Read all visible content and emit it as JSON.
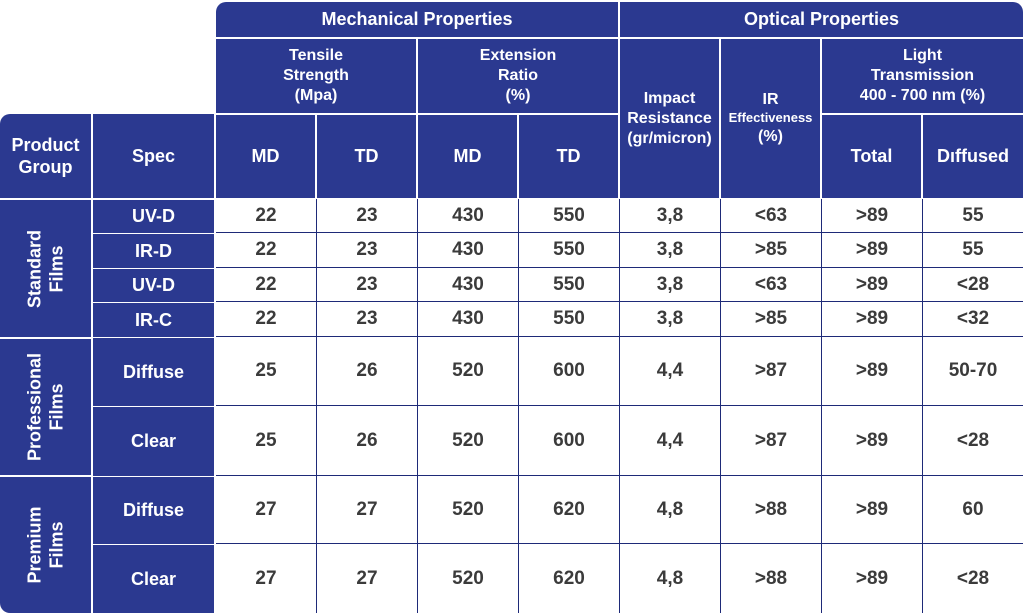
{
  "header": {
    "mechanical": "Mechanical Properties",
    "optical": "Optical Properties",
    "tensile": "Tensile\nStrength\n(Mpa)",
    "extension": "Extension\nRatio\n(%)",
    "impact": "Impact\nResistance\n(gr/micron)",
    "ir_title": "IR",
    "ir_sub": "Effectiveness",
    "ir_unit": "(%)",
    "light": "Light\nTransmission\n400 - 700 nm (%)",
    "product_group": "Product\nGroup",
    "spec": "Spec",
    "md": "MD",
    "td": "TD",
    "total": "Total",
    "diffused": "Dıffused"
  },
  "groups": [
    {
      "label": "Standard\nFilms"
    },
    {
      "label": "Professional\nFilms"
    },
    {
      "label": "Premium\nFilms"
    }
  ],
  "rows": [
    {
      "spec": "UV-D",
      "values": [
        "22",
        "23",
        "430",
        "550",
        "3,8",
        "<63",
        ">89",
        "55"
      ]
    },
    {
      "spec": "IR-D",
      "values": [
        "22",
        "23",
        "430",
        "550",
        "3,8",
        ">85",
        ">89",
        "55"
      ]
    },
    {
      "spec": "UV-D",
      "values": [
        "22",
        "23",
        "430",
        "550",
        "3,8",
        "<63",
        ">89",
        "<28"
      ]
    },
    {
      "spec": "IR-C",
      "values": [
        "22",
        "23",
        "430",
        "550",
        "3,8",
        ">85",
        ">89",
        "<32"
      ]
    },
    {
      "spec": "Diffuse",
      "values": [
        "25",
        "26",
        "520",
        "600",
        "4,4",
        ">87",
        ">89",
        "50-70"
      ]
    },
    {
      "spec": "Clear",
      "values": [
        "25",
        "26",
        "520",
        "600",
        "4,4",
        ">87",
        ">89",
        "<28"
      ]
    },
    {
      "spec": "Diffuse",
      "values": [
        "27",
        "27",
        "520",
        "620",
        "4,8",
        ">88",
        ">89",
        "60"
      ]
    },
    {
      "spec": "Clear",
      "values": [
        "27",
        "27",
        "520",
        "620",
        "4,8",
        ">88",
        ">89",
        "<28"
      ]
    }
  ]
}
